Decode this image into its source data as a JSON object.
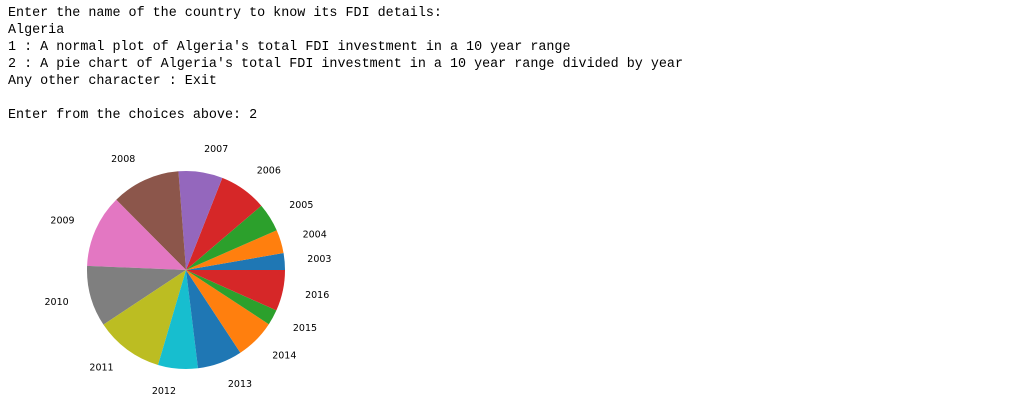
{
  "console": {
    "prompt_country": "Enter the name of the country to know its FDI details:",
    "country_input": "Algeria",
    "option_1": "1 : A normal plot of Algeria's total FDI investment in a 10 year range",
    "option_2": "2 : A pie chart of Algeria's total FDI investment in a 10 year range divided by year",
    "option_other": "Any other character : Exit",
    "prompt_choice": "Enter from the choices above: 2"
  },
  "chart_data": {
    "type": "pie",
    "title": "",
    "start_angle_deg": 0,
    "direction": "counterclockwise",
    "slices": [
      {
        "label": "2003",
        "value": 634,
        "color": "#1f77b4"
      },
      {
        "label": "2004",
        "value": 882,
        "color": "#ff7f0e"
      },
      {
        "label": "2005",
        "value": 1081,
        "color": "#2ca02c"
      },
      {
        "label": "2006",
        "value": 1795,
        "color": "#d62728"
      },
      {
        "label": "2007",
        "value": 1662,
        "color": "#9467bd"
      },
      {
        "label": "2008",
        "value": 2593,
        "color": "#8c564b"
      },
      {
        "label": "2009",
        "value": 2746,
        "color": "#e377c2"
      },
      {
        "label": "2010",
        "value": 2300,
        "color": "#7f7f7f"
      },
      {
        "label": "2011",
        "value": 2571,
        "color": "#bcbd22"
      },
      {
        "label": "2012",
        "value": 1500,
        "color": "#17becf"
      },
      {
        "label": "2013",
        "value": 1689,
        "color": "#1f77b4"
      },
      {
        "label": "2014",
        "value": 1507,
        "color": "#ff7f0e"
      },
      {
        "label": "2015",
        "value": 584,
        "color": "#2ca02c"
      },
      {
        "label": "2016",
        "value": 1546,
        "color": "#d62728"
      }
    ]
  }
}
